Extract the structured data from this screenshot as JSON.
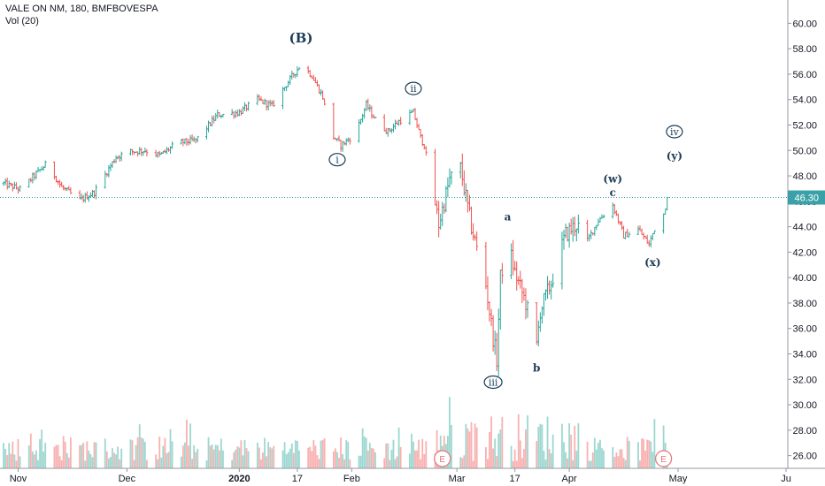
{
  "header": {
    "symbol_line": "VALE ON NM, 180, BMFBOVESPA",
    "volume_line": "Vol (20)"
  },
  "colors": {
    "up": "#26a69a",
    "down": "#ef5350",
    "label": "#1c3b57",
    "last_price_tag": "#3ba1a9",
    "earnings": "#e57373"
  },
  "chart_data": {
    "type": "candlestick-ohlc-bars",
    "ylim": [
      25,
      61
    ],
    "y_ticks": [
      "26.00",
      "28.00",
      "30.00",
      "32.00",
      "34.00",
      "36.00",
      "38.00",
      "40.00",
      "42.00",
      "44.00",
      "46.00",
      "48.00",
      "50.00",
      "52.00",
      "54.00",
      "56.00",
      "58.00",
      "60.00"
    ],
    "x_ticks": [
      "Nov",
      "Dec",
      "2020",
      "17",
      "Feb",
      "Mar",
      "17",
      "Apr",
      "May",
      "Ju"
    ],
    "last_price": 46.3,
    "last_price_label": "46.30",
    "price_anchors": [
      [
        "2019-10-28",
        47.4
      ],
      [
        "2019-11-02",
        46.9
      ],
      [
        "2019-11-05",
        47.9
      ],
      [
        "2019-11-09",
        49.0
      ],
      [
        "2019-11-13",
        47.1
      ],
      [
        "2019-11-18",
        46.1
      ],
      [
        "2019-11-22",
        46.7
      ],
      [
        "2019-11-28",
        49.5
      ],
      [
        "2019-12-02",
        49.9
      ],
      [
        "2019-12-06",
        50.0
      ],
      [
        "2019-12-10",
        49.6
      ],
      [
        "2019-12-15",
        50.6
      ],
      [
        "2019-12-20",
        50.8
      ],
      [
        "2019-12-26",
        52.8
      ],
      [
        "2020-01-01",
        53.0
      ],
      [
        "2020-01-06",
        54.0
      ],
      [
        "2020-01-10",
        53.5
      ],
      [
        "2020-01-14",
        55.2
      ],
      [
        "2020-01-18",
        56.8
      ],
      [
        "2020-01-21",
        55.9
      ],
      [
        "2020-01-24",
        54.2
      ],
      [
        "2020-01-26",
        51.4
      ],
      [
        "2020-01-29",
        50.4
      ],
      [
        "2020-02-02",
        51.3
      ],
      [
        "2020-02-05",
        53.6
      ],
      [
        "2020-02-08",
        52.2
      ],
      [
        "2020-02-11",
        51.5
      ],
      [
        "2020-02-14",
        52.3
      ],
      [
        "2020-02-18",
        53.0
      ],
      [
        "2020-02-20",
        51.0
      ],
      [
        "2020-02-21",
        50.4
      ],
      [
        "2020-02-25",
        44.2
      ],
      [
        "2020-02-28",
        47.7
      ],
      [
        "2020-03-02",
        48.6
      ],
      [
        "2020-03-05",
        44.0
      ],
      [
        "2020-03-09",
        39.4
      ],
      [
        "2020-03-11",
        35.3
      ],
      [
        "2020-03-12",
        33.5
      ],
      [
        "2020-03-13",
        40.0
      ],
      [
        "2020-03-15",
        42.8
      ],
      [
        "2020-03-17",
        40.4
      ],
      [
        "2020-03-20",
        38.0
      ],
      [
        "2020-03-23",
        34.6
      ],
      [
        "2020-03-24",
        37.4
      ],
      [
        "2020-03-27",
        39.6
      ],
      [
        "2020-03-31",
        43.4
      ],
      [
        "2020-04-03",
        44.2
      ],
      [
        "2020-04-06",
        42.9
      ],
      [
        "2020-04-09",
        44.5
      ],
      [
        "2020-04-13",
        45.7
      ],
      [
        "2020-04-16",
        43.3
      ],
      [
        "2020-04-20",
        43.8
      ],
      [
        "2020-04-23",
        42.6
      ],
      [
        "2020-04-25",
        44.3
      ],
      [
        "2020-04-27",
        45.0
      ],
      [
        "2020-04-28",
        46.3
      ]
    ],
    "wave_labels": [
      {
        "text": "(B)",
        "date": "2020-01-18",
        "price": 58.5
      },
      {
        "text": "i",
        "date": "2020-01-28",
        "price": 49.0,
        "circled": true
      },
      {
        "text": "ii",
        "date": "2020-02-18",
        "price": 54.6,
        "circled": true
      },
      {
        "text": "iii",
        "date": "2020-03-11",
        "price": 31.5,
        "circled": true
      },
      {
        "text": "a",
        "date": "2020-03-15",
        "price": 44.5
      },
      {
        "text": "b",
        "date": "2020-03-23",
        "price": 32.6
      },
      {
        "text": "(w)",
        "date": "2020-04-13",
        "price": 47.5
      },
      {
        "text": "c",
        "date": "2020-04-13",
        "price": 46.4
      },
      {
        "text": "(x)",
        "date": "2020-04-24",
        "price": 40.9
      },
      {
        "text": "iv",
        "date": "2020-04-30",
        "price": 51.2,
        "circled": true
      },
      {
        "text": "(y)",
        "date": "2020-04-30",
        "price": 49.3
      }
    ],
    "earnings_markers": [
      {
        "text": "E",
        "date": "2020-02-26"
      },
      {
        "text": "E",
        "date": "2020-04-27"
      }
    ]
  }
}
